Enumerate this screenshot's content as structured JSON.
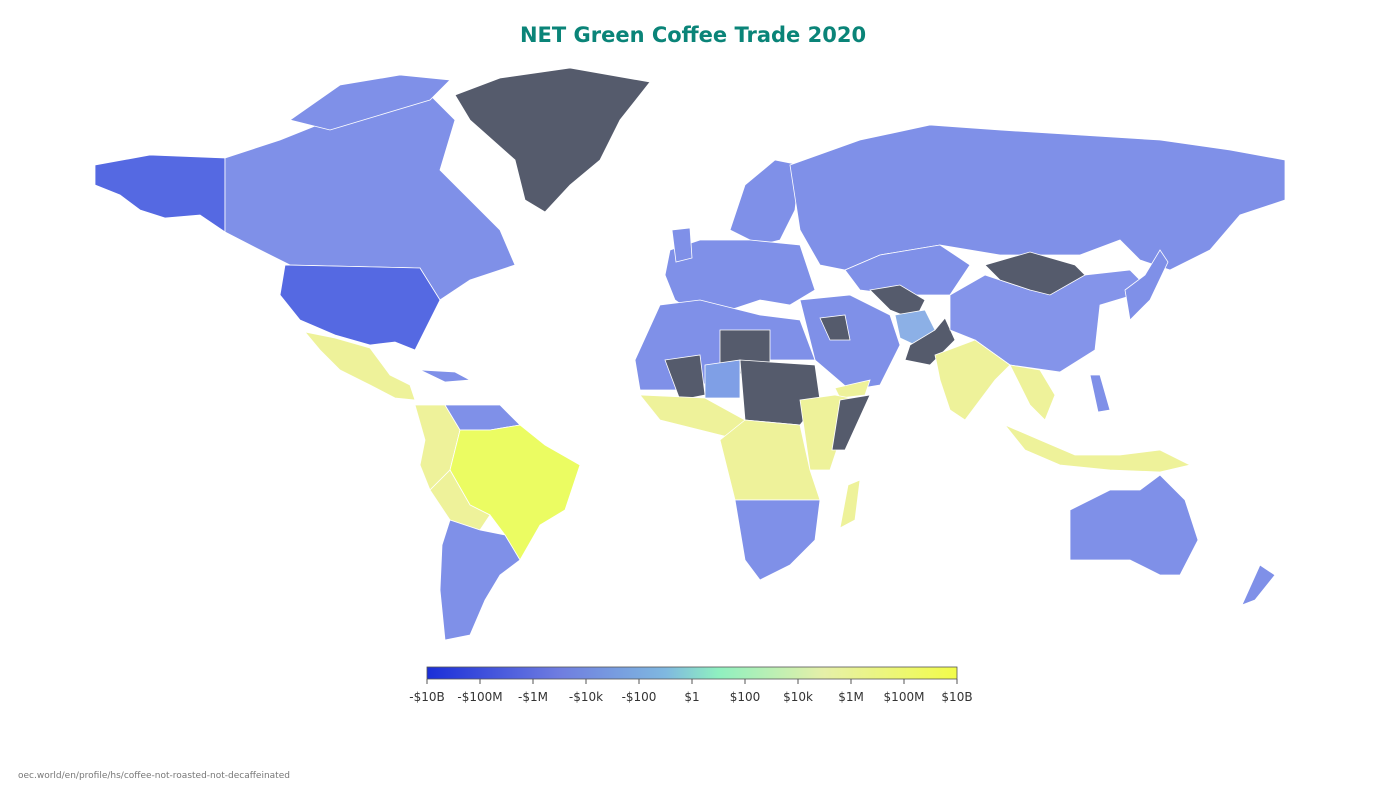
{
  "title": "NET Green Coffee Trade 2020",
  "legend": {
    "ticks": [
      "-$10B",
      "-$100M",
      "-$1M",
      "-$10k",
      "-$100",
      "$1",
      "$100",
      "$10k",
      "$1M",
      "$100M",
      "$10B"
    ]
  },
  "source": "oec.world/en/profile/hs/coffee-not-roasted-not-decaffeinated"
}
